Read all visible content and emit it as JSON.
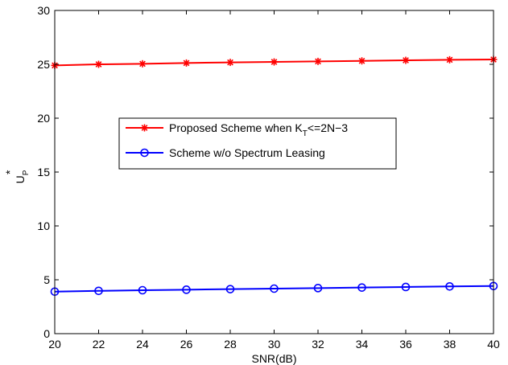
{
  "chart_data": {
    "type": "line",
    "xlabel": "SNR(dB)",
    "ylabel": {
      "main": "U",
      "sup": "*",
      "sub": "P"
    },
    "xlim": [
      20,
      40
    ],
    "ylim": [
      0,
      30
    ],
    "xticks": [
      20,
      22,
      24,
      26,
      28,
      30,
      32,
      34,
      36,
      38,
      40
    ],
    "yticks": [
      0,
      5,
      10,
      15,
      20,
      25,
      30
    ],
    "grid": false,
    "legend_position": "center-left",
    "x": [
      20,
      22,
      24,
      26,
      28,
      30,
      32,
      34,
      36,
      38,
      40
    ],
    "series": [
      {
        "legend": {
          "text": "Proposed Scheme when K",
          "sub": "T",
          "rest": "<=2N−3"
        },
        "color": "#ff0000",
        "marker": "asterisk",
        "values": [
          24.9,
          25.0,
          25.05,
          25.12,
          25.18,
          25.22,
          25.27,
          25.32,
          25.37,
          25.42,
          25.45
        ]
      },
      {
        "legend": {
          "text": "Scheme w/o Spectrum Leasing",
          "sub": "",
          "rest": ""
        },
        "color": "#0000ff",
        "marker": "circle",
        "values": [
          3.9,
          3.97,
          4.03,
          4.08,
          4.13,
          4.18,
          4.23,
          4.28,
          4.33,
          4.38,
          4.42
        ]
      }
    ]
  }
}
